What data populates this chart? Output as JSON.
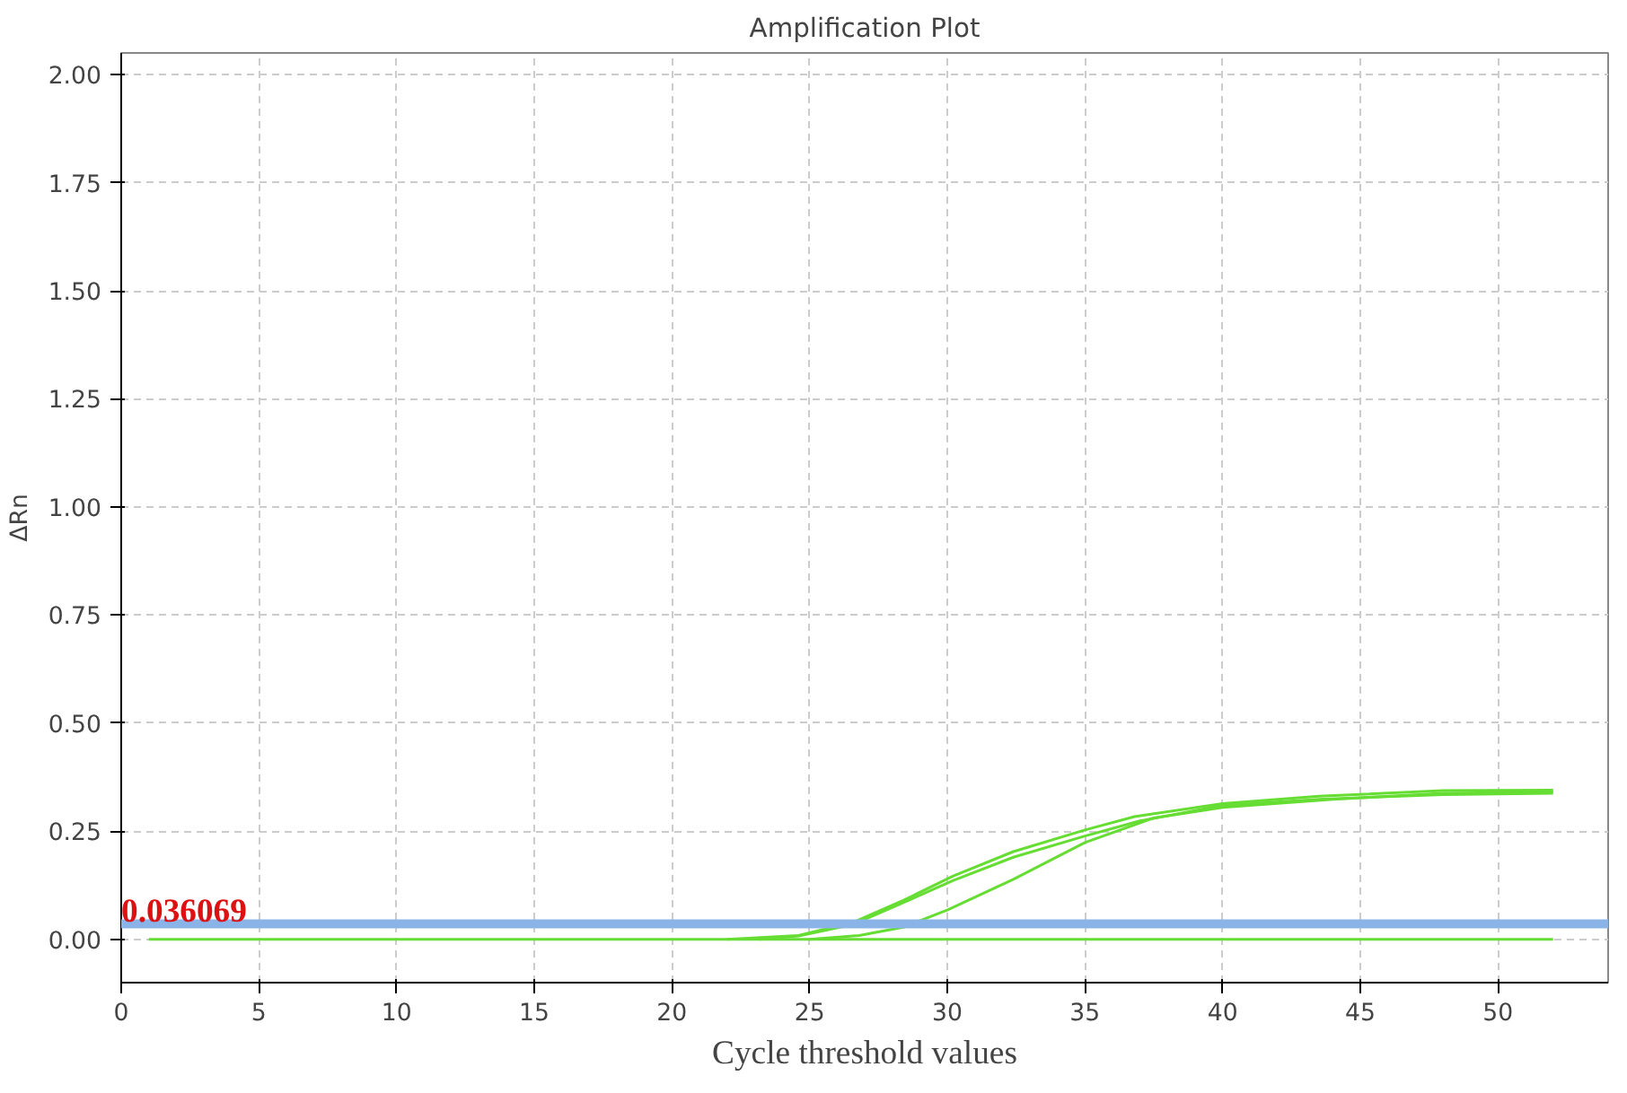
{
  "chart_data": {
    "type": "line",
    "title": "Amplification Plot",
    "xlabel": "Cycle threshold values",
    "ylabel": "ΔRn",
    "xlim": [
      0,
      54
    ],
    "ylim": [
      -0.1,
      2.05
    ],
    "xticks": [
      0,
      5,
      10,
      15,
      20,
      25,
      30,
      35,
      40,
      45,
      50
    ],
    "yticks": [
      {
        "value": 0,
        "label": "0.00"
      },
      {
        "value": 0.25,
        "label": "0.25"
      },
      {
        "value": 0.5,
        "label": "0.50"
      },
      {
        "value": 0.75,
        "label": "0.75"
      },
      {
        "value": 1,
        "label": "1.00"
      },
      {
        "value": 1.25,
        "label": "1.25"
      },
      {
        "value": 1.5,
        "label": "1.50"
      },
      {
        "value": 1.75,
        "label": "1.75"
      },
      {
        "value": 2,
        "label": "2.00"
      }
    ],
    "grid": true,
    "line_style": "solid",
    "ref_lines": [
      {
        "axis": "y",
        "value": 0.036069,
        "label": "0.036069",
        "color": "#8ab4e8"
      }
    ],
    "series": [
      {
        "color": "#66dd33",
        "x": [
          22,
          24.6,
          26.6,
          28.4,
          30.2,
          32.4,
          35,
          36.8,
          40,
          43.5,
          48,
          52
        ],
        "values": [
          0,
          0.009,
          0.04,
          0.09,
          0.146,
          0.203,
          0.253,
          0.284,
          0.314,
          0.331,
          0.344,
          0.345
        ]
      },
      {
        "color": "#66dd33",
        "x": [
          23.2,
          24.6,
          26.6,
          28.4,
          30.2,
          32.4,
          35,
          37,
          40,
          43.5,
          48,
          52
        ],
        "values": [
          0,
          0.008,
          0.035,
          0.085,
          0.136,
          0.19,
          0.239,
          0.274,
          0.31,
          0.324,
          0.335,
          0.338
        ]
      },
      {
        "color": "#66dd33",
        "x": [
          25,
          26.8,
          28.4,
          30,
          32.4,
          35,
          37.5,
          40,
          44,
          48,
          52
        ],
        "values": [
          0,
          0.009,
          0.028,
          0.068,
          0.139,
          0.224,
          0.281,
          0.305,
          0.324,
          0.338,
          0.341
        ]
      },
      {
        "color": "#66dd33",
        "x": [
          1,
          52
        ],
        "values": [
          0,
          0
        ]
      }
    ]
  }
}
